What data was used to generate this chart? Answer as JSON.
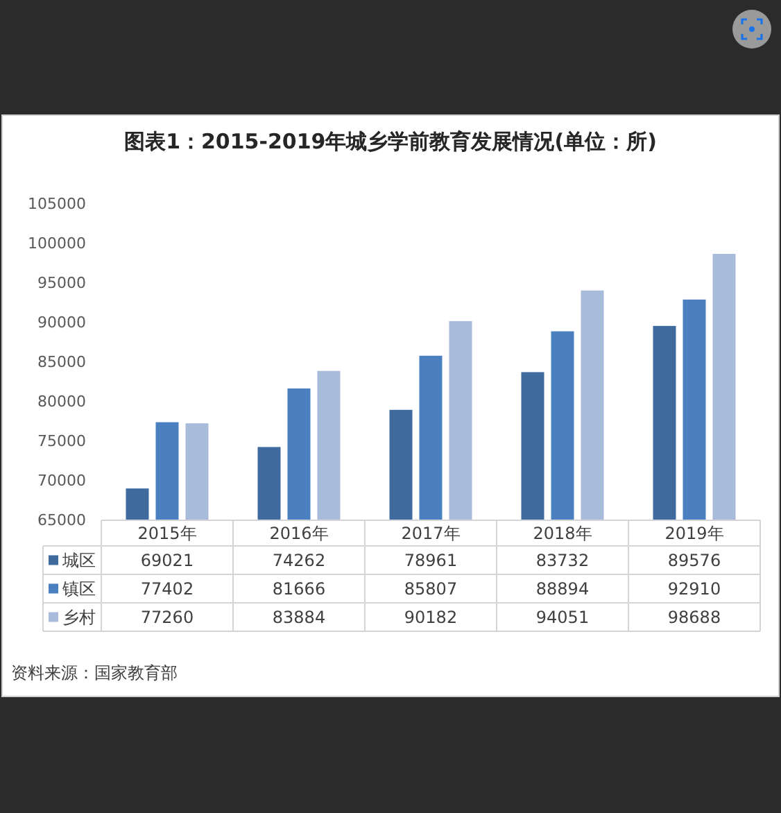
{
  "chart_data": {
    "type": "bar",
    "title": "图表1：2015-2019年城乡学前教育发展情况(单位：所)",
    "categories": [
      "2015年",
      "2016年",
      "2017年",
      "2018年",
      "2019年"
    ],
    "series": [
      {
        "name": "城区",
        "color": "#3f6a9e",
        "values": [
          69021,
          74262,
          78961,
          83732,
          89576
        ]
      },
      {
        "name": "镇区",
        "color": "#4a7fc0",
        "values": [
          77402,
          81666,
          85807,
          88894,
          92910
        ]
      },
      {
        "name": "乡村",
        "color": "#a8bbdb",
        "values": [
          77260,
          83884,
          90182,
          94051,
          98688
        ]
      }
    ],
    "ylim": [
      65000,
      105000
    ],
    "yticks": [
      65000,
      70000,
      75000,
      80000,
      85000,
      90000,
      95000,
      100000,
      105000
    ],
    "data_labels": true,
    "legend": "bottom",
    "annotations": [
      "资料来源：国家教育部"
    ]
  }
}
